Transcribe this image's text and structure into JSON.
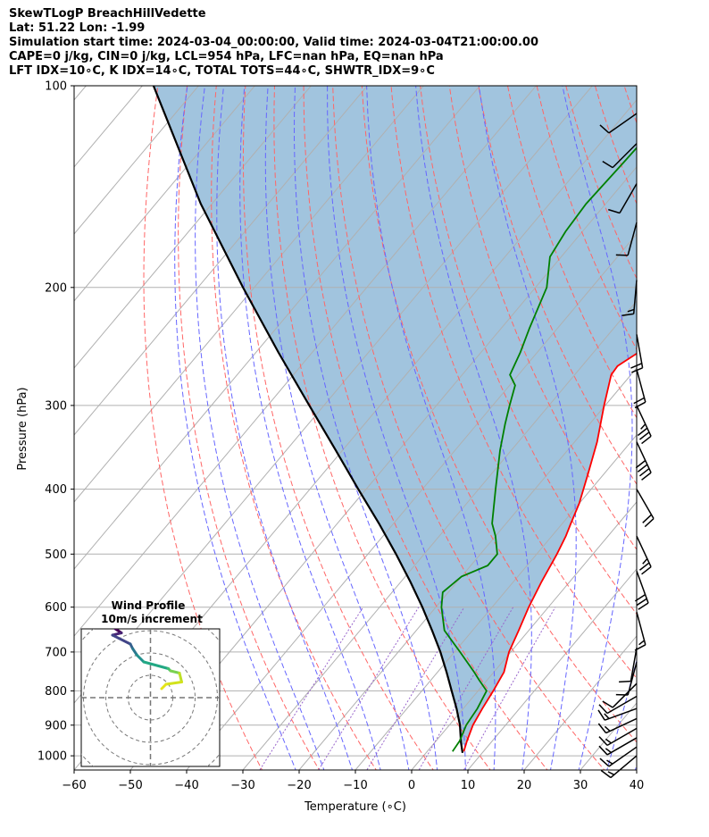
{
  "header": {
    "title": "SkewTLogP BreachHillVedette",
    "location": "Lat: 51.22   Lon: -1.99",
    "times": "Simulation start time: 2024-03-04_00:00:00, Valid time: 2024-03-04T21:00:00.00",
    "indices_1": "CAPE=0 j/kg, CIN=0 j/kg, LCL=954 hPa, LFC=nan hPa, EQ=nan hPa",
    "indices_2": "LFT IDX=10∘C, K IDX=14∘C, TOTAL TOTS=44∘C, SHWTR_IDX=9∘C"
  },
  "colors": {
    "temperature": "#ff0000",
    "dewpoint": "#008000",
    "parcel": "#000000",
    "cape_fill": "#a1c4de",
    "dry_adiabat": "#ff6666",
    "moist_adiabat": "#6666ff",
    "mixing_ratio": "#9966cc",
    "isotherm": "#b0b0b0",
    "isobar": "#b0b0b0"
  },
  "chart_data": [
    {
      "type": "line",
      "chart": "skew-t log-p",
      "xlabel": "Temperature (∘C)",
      "ylabel": "Pressure (hPa)",
      "xlim": [
        -60,
        40
      ],
      "ylim": [
        1050,
        100
      ],
      "y_scale": "log",
      "x_ticks": [
        -60,
        -50,
        -40,
        -30,
        -20,
        -10,
        0,
        10,
        20,
        30,
        40
      ],
      "x_tick_labels": [
        "−60",
        "−50",
        "−40",
        "−30",
        "−20",
        "−10",
        "0",
        "10",
        "20",
        "30",
        "40"
      ],
      "y_ticks": [
        100,
        200,
        300,
        400,
        500,
        600,
        700,
        800,
        900,
        1000
      ],
      "y_tick_labels": [
        "100",
        "200",
        "300",
        "400",
        "500",
        "600",
        "700",
        "800",
        "900",
        "1000"
      ],
      "grid": true,
      "skew_deg_per_log_decade": 100,
      "series": [
        {
          "role": "temperature",
          "pressure": [
            985,
            950,
            900,
            850,
            800,
            750,
            700,
            650,
            600,
            550,
            500,
            470,
            450,
            420,
            380,
            340,
            300,
            270,
            262,
            250,
            240,
            220,
            200,
            180,
            165,
            150,
            140,
            130,
            120,
            110,
            100
          ],
          "temperature": [
            6.5,
            5.5,
            4.2,
            3.4,
            2.7,
            1.8,
            -0.3,
            -1.8,
            -3.5,
            -5.0,
            -6.4,
            -7.5,
            -8.5,
            -10.0,
            -12.8,
            -16.0,
            -20.2,
            -23.5,
            -23.7,
            -22.0,
            -21.5,
            -19.8,
            -17.8,
            -16.5,
            -15.2,
            -14.0,
            -13.5,
            -13.3,
            -12.5,
            -11.5,
            -10.5
          ]
        },
        {
          "role": "dewpoint",
          "pressure": [
            985,
            950,
            900,
            850,
            800,
            770,
            750,
            700,
            650,
            600,
            570,
            540,
            520,
            500,
            470,
            450,
            400,
            350,
            320,
            300,
            280,
            270,
            250,
            230,
            200,
            180,
            165,
            150,
            130,
            110,
            100
          ],
          "temperature": [
            4.5,
            4.2,
            3.0,
            2.5,
            1.5,
            -1.5,
            -3.5,
            -9.0,
            -15.0,
            -19.0,
            -21.0,
            -20.0,
            -17.0,
            -17.0,
            -20.0,
            -22.5,
            -27.0,
            -32.0,
            -35.0,
            -37.0,
            -39.0,
            -41.5,
            -43.0,
            -45.0,
            -48.0,
            -52.0,
            -53.0,
            -53.5,
            -53.0,
            -52.5,
            -52.5
          ]
        },
        {
          "role": "parcel",
          "pressure": [
            990,
            954,
            900,
            850,
            800,
            750,
            700,
            650,
            600,
            550,
            500,
            450,
            400,
            350,
            300,
            250,
            200,
            150,
            100
          ],
          "temperature": [
            6.5,
            4.6,
            1.9,
            -1.2,
            -4.7,
            -8.4,
            -12.5,
            -17.2,
            -22.4,
            -28.3,
            -35.0,
            -42.6,
            -51.4,
            -61.2,
            -72.6,
            -86.0,
            -102.0,
            -122.0,
            -148.0
          ]
        }
      ],
      "wind_barbs": {
        "pressure": [
          1000,
          970,
          940,
          910,
          880,
          850,
          815,
          780,
          725,
          690,
          610,
          530,
          470,
          400,
          340,
          300,
          265,
          235,
          195,
          160,
          140,
          122,
          110
        ],
        "speed_kt": [
          15,
          15,
          15,
          15,
          15,
          15,
          10,
          10,
          10,
          10,
          15,
          30,
          25,
          20,
          40,
          35,
          20,
          20,
          15,
          10,
          10,
          10,
          10
        ],
        "direction_deg": [
          230,
          235,
          240,
          240,
          245,
          250,
          240,
          225,
          195,
          190,
          165,
          160,
          155,
          150,
          155,
          155,
          165,
          170,
          185,
          195,
          210,
          225,
          235
        ]
      }
    },
    {
      "type": "line",
      "chart": "hodograph",
      "title": "Wind Profile",
      "subtitle": "10m/s increment",
      "ring_increment": 10,
      "xlim": [
        -30,
        30
      ],
      "ylim": [
        -30,
        30
      ],
      "u": [
        5,
        7,
        14,
        13,
        9,
        8,
        -3,
        -6,
        -8,
        -9,
        -17,
        -13,
        -16
      ],
      "v": [
        4,
        6,
        7,
        11,
        12,
        13,
        16,
        19,
        22,
        24,
        28,
        29,
        31
      ]
    }
  ]
}
